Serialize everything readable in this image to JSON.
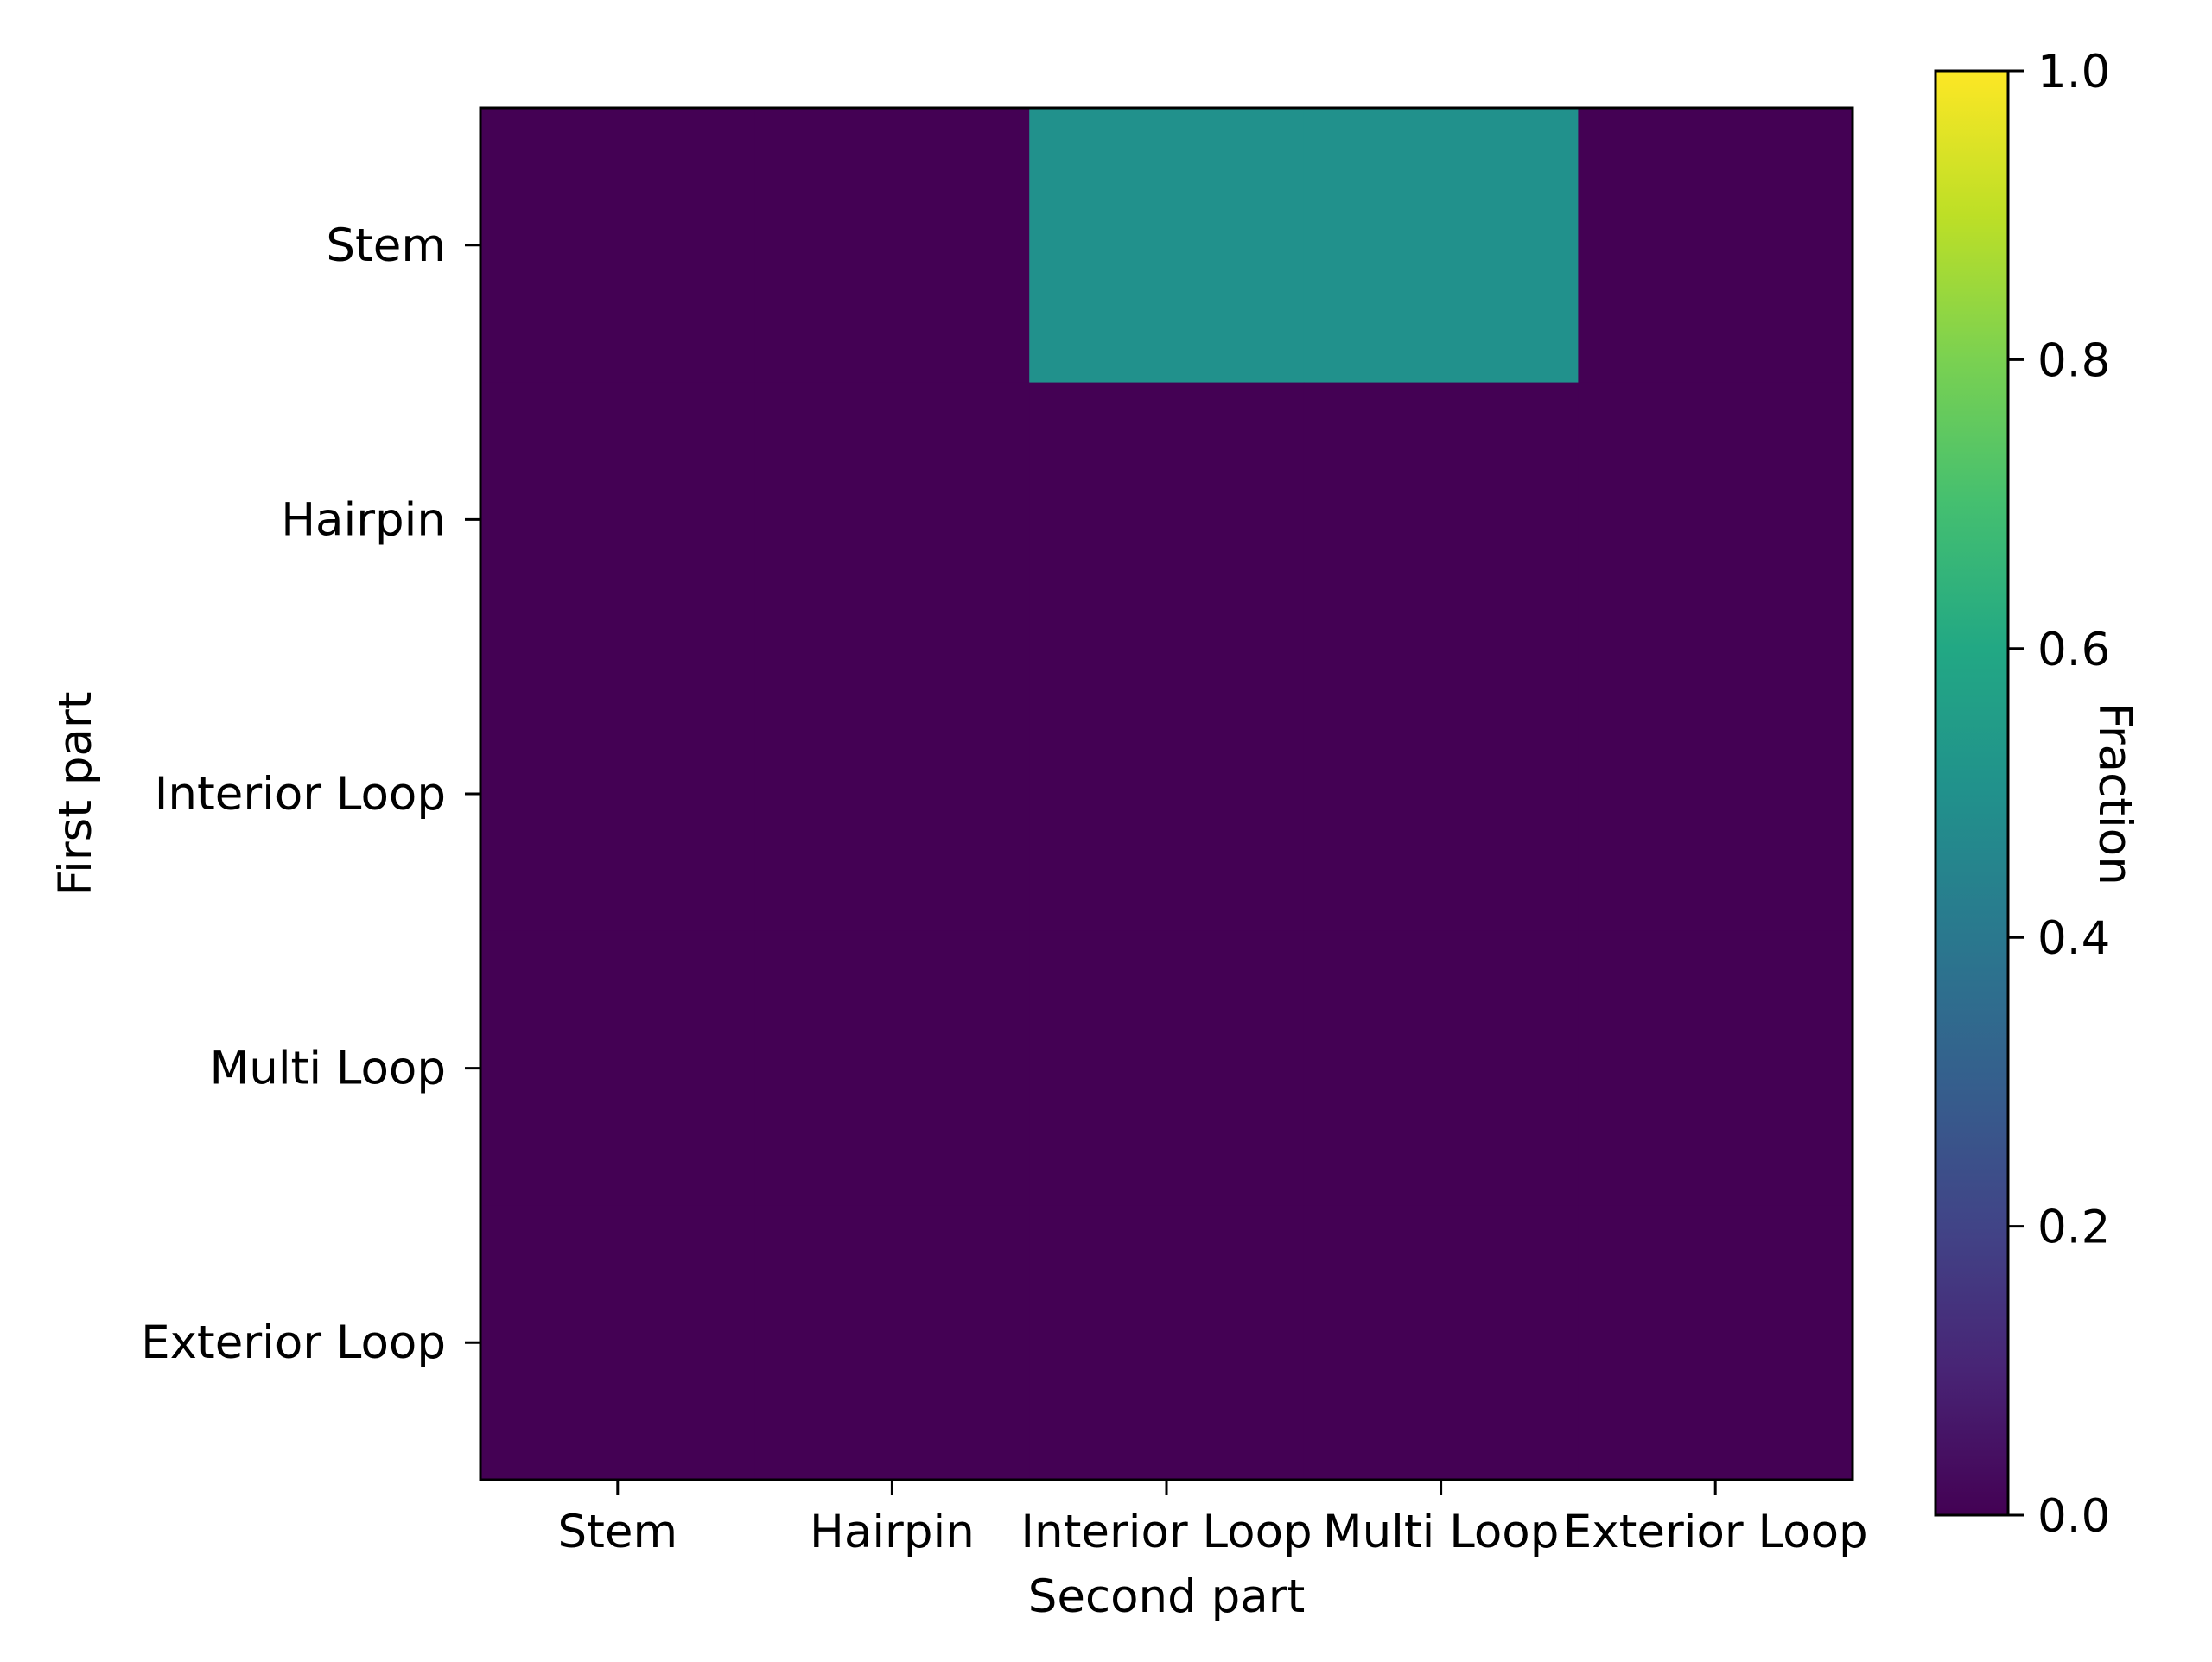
{
  "chart_data": {
    "type": "heatmap",
    "title": "",
    "xlabel": "Second part",
    "ylabel": "First part",
    "x_categories": [
      "Stem",
      "Hairpin",
      "Interior Loop",
      "Multi Loop",
      "Exterior Loop"
    ],
    "y_categories": [
      "Stem",
      "Hairpin",
      "Interior Loop",
      "Multi Loop",
      "Exterior Loop"
    ],
    "values": [
      [
        0.0,
        0.0,
        0.5,
        0.5,
        0.0
      ],
      [
        0.0,
        0.0,
        0.0,
        0.0,
        0.0
      ],
      [
        0.0,
        0.0,
        0.0,
        0.0,
        0.0
      ],
      [
        0.0,
        0.0,
        0.0,
        0.0,
        0.0
      ],
      [
        0.0,
        0.0,
        0.0,
        0.0,
        0.0
      ]
    ],
    "colorbar": {
      "label": "Fraction",
      "range": [
        0.0,
        1.0
      ],
      "ticks": [
        0.0,
        0.2,
        0.4,
        0.6,
        0.8,
        1.0
      ],
      "tick_labels": [
        "0.0",
        "0.2",
        "0.4",
        "0.6",
        "0.8",
        "1.0"
      ],
      "colormap": "viridis"
    },
    "grid": false
  }
}
